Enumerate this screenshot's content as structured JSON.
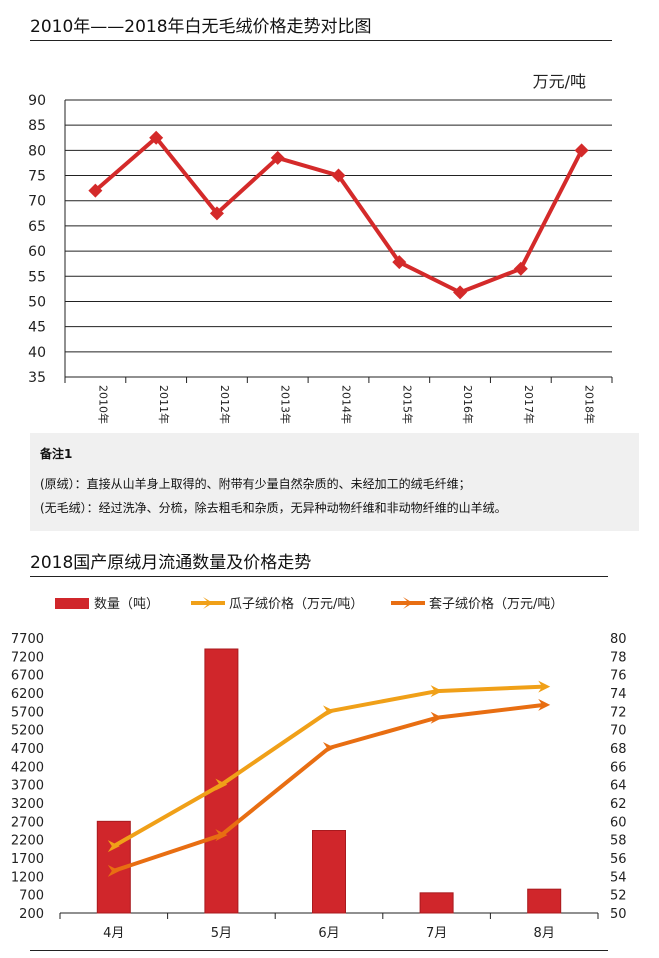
{
  "chart_data": [
    {
      "type": "line",
      "title": "2010年——2018年白无毛绒价格走势对比图",
      "unit_label": "万元/吨",
      "categories": [
        "2010年",
        "2011年",
        "2012年",
        "2013年",
        "2014年",
        "2015年",
        "2016年",
        "2017年",
        "2018年"
      ],
      "values": [
        72,
        82.5,
        67.5,
        78.5,
        75,
        57.8,
        51.8,
        56.5,
        80
      ],
      "ylim": [
        35,
        90
      ],
      "yticks": [
        90,
        85,
        80,
        75,
        70,
        65,
        60,
        55,
        50,
        45,
        40,
        35
      ],
      "grid": true,
      "series_color": "#d42a2a"
    },
    {
      "type": "bar+line",
      "title": "2018国产原绒月流通数量及价格走势",
      "categories": [
        "4月",
        "5月",
        "6月",
        "7月",
        "8月"
      ],
      "series": [
        {
          "name": "数量（吨）",
          "type": "bar",
          "axis": "left",
          "color": "#d0262b",
          "values": [
            2700,
            7400,
            2450,
            750,
            850
          ]
        },
        {
          "name": "瓜子绒价格（万元/吨）",
          "type": "line",
          "axis": "right",
          "color": "#f0a018",
          "values": [
            57.3,
            64,
            72,
            74.2,
            74.7
          ]
        },
        {
          "name": "套子绒价格（万元/吨）",
          "type": "line",
          "axis": "right",
          "color": "#e86e12",
          "values": [
            54.6,
            58.5,
            68,
            71.3,
            72.7
          ]
        }
      ],
      "left_ylim": [
        200,
        7700
      ],
      "left_yticks": [
        7700,
        7200,
        6700,
        6200,
        5700,
        5200,
        4700,
        4200,
        3700,
        3200,
        2700,
        2200,
        1700,
        1200,
        700,
        200
      ],
      "right_ylim": [
        50,
        80
      ],
      "right_yticks": [
        80,
        78,
        76,
        74,
        72,
        70,
        68,
        66,
        64,
        62,
        60,
        58,
        56,
        54,
        52,
        50
      ],
      "legend_position": "top"
    }
  ],
  "note": {
    "heading": "备注1",
    "lines": [
      "(原绒）：直接从山羊身上取得的、附带有少量自然杂质的、未经加工的绒毛纤维；",
      "(无毛绒）：经过洗净、分梳，除去粗毛和杂质，无异种动物纤维和非动物纤维的山羊绒。"
    ]
  }
}
